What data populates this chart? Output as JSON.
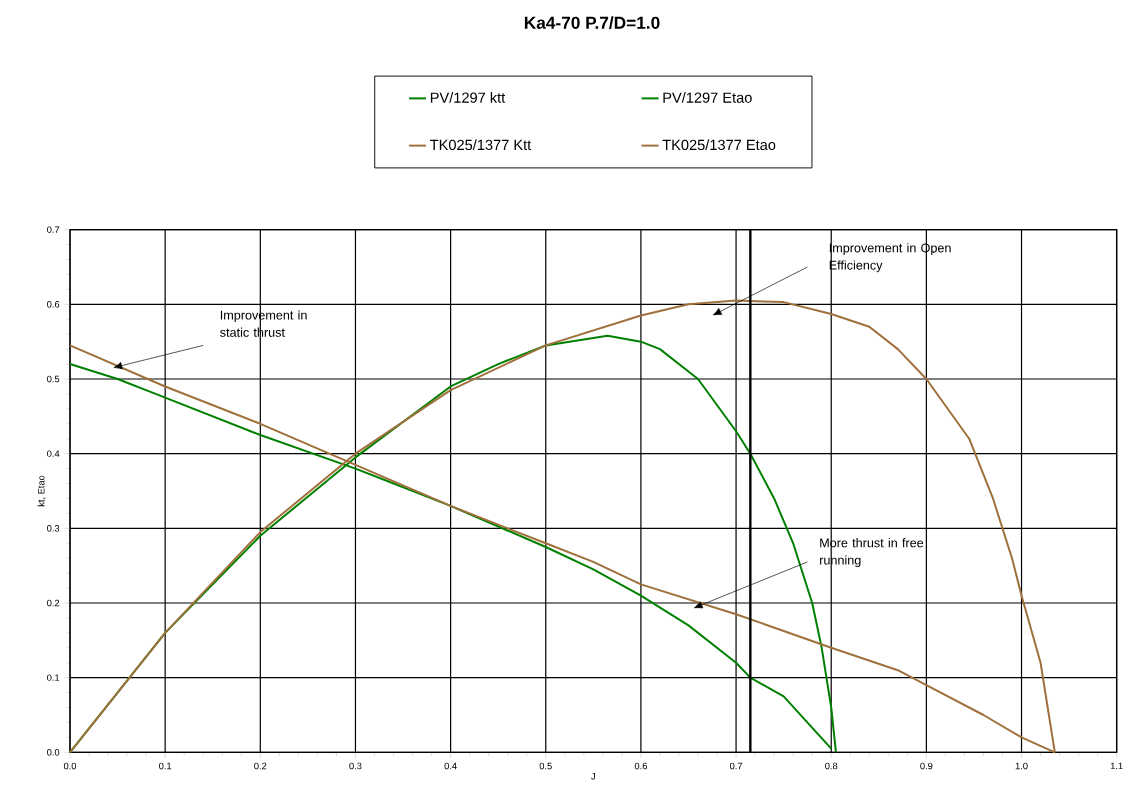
{
  "chart_data": {
    "type": "line",
    "title": "Ka4-70 P.7/D=1.0",
    "xlabel": "J",
    "ylabel": "kt, Etao",
    "series": [
      {
        "name": "PV/1297 ktt",
        "color": "#008000",
        "x": [
          0,
          0.05,
          0.09,
          0.1,
          0.2,
          0.3,
          0.33,
          0.4,
          0.5,
          0.55,
          0.6,
          0.65,
          0.7,
          0.715,
          0.75,
          0.8
        ],
        "values": [
          0.52,
          0.5,
          0.48,
          0.475,
          0.425,
          0.38,
          0.365,
          0.33,
          0.275,
          0.245,
          0.21,
          0.17,
          0.12,
          0.1,
          0.075,
          0.005
        ]
      },
      {
        "name": "PV/1297 Etao",
        "color": "#008000",
        "x": [
          0,
          0.1,
          0.2,
          0.3,
          0.4,
          0.45,
          0.5,
          0.565,
          0.6,
          0.62,
          0.66,
          0.7,
          0.715,
          0.74,
          0.76,
          0.78,
          0.79,
          0.8,
          0.805
        ],
        "values": [
          0,
          0.16,
          0.29,
          0.395,
          0.49,
          0.52,
          0.545,
          0.558,
          0.55,
          0.54,
          0.5,
          0.43,
          0.4,
          0.34,
          0.28,
          0.2,
          0.14,
          0.06,
          0
        ]
      },
      {
        "name": "TK025/1377 Ktt",
        "color": "#a0703c",
        "x": [
          0,
          0.1,
          0.2,
          0.3,
          0.4,
          0.5,
          0.55,
          0.6,
          0.7,
          0.8,
          0.87,
          0.9,
          0.96,
          1.0,
          1.035
        ],
        "values": [
          0.545,
          0.49,
          0.44,
          0.385,
          0.33,
          0.28,
          0.255,
          0.225,
          0.185,
          0.14,
          0.11,
          0.09,
          0.05,
          0.02,
          0
        ]
      },
      {
        "name": "TK025/1377 Etao",
        "color": "#a0703c",
        "x": [
          0,
          0.05,
          0.1,
          0.2,
          0.3,
          0.4,
          0.5,
          0.6,
          0.65,
          0.7,
          0.75,
          0.8,
          0.84,
          0.87,
          0.9,
          0.945,
          0.97,
          0.99,
          1.0,
          1.02,
          1.035
        ],
        "values": [
          0,
          0.08,
          0.16,
          0.295,
          0.4,
          0.485,
          0.545,
          0.585,
          0.6,
          0.605,
          0.603,
          0.587,
          0.57,
          0.54,
          0.5,
          0.42,
          0.34,
          0.26,
          0.21,
          0.12,
          0
        ]
      }
    ],
    "xlim": [
      0,
      1.1
    ],
    "xticks": [
      {
        "value": 0,
        "label": "0.0"
      },
      0.1,
      0.2,
      0.3,
      0.4,
      0.5,
      0.6,
      0.7,
      0.8,
      0.9,
      {
        "value": 1,
        "label": "1.0"
      },
      1.1
    ],
    "ylim": [
      0,
      0.7
    ],
    "yticks": [
      {
        "value": 0,
        "label": "0.0"
      },
      0.1,
      0.2,
      0.3,
      0.4,
      0.5,
      0.6,
      0.7
    ],
    "grid": true,
    "legend": "top",
    "marker": "none",
    "line_style": "solid",
    "ref_lines": [
      {
        "axis": "x",
        "value": 0.715,
        "color": "#000000"
      }
    ],
    "annotations": [
      "Improvement   in static thrust",
      "Improvement   in Open Efficiency",
      "More thrust in free running"
    ]
  }
}
